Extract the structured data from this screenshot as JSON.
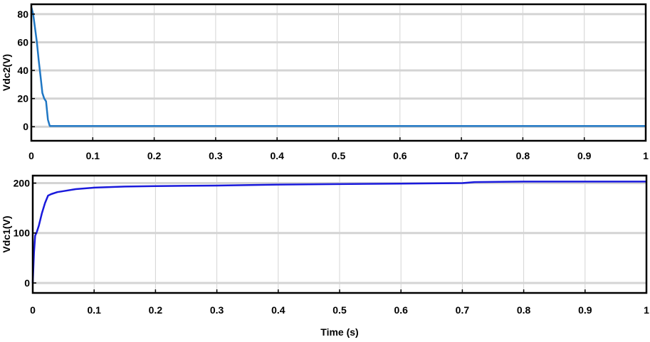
{
  "chart_data": [
    {
      "type": "line",
      "title": "",
      "xlabel": "",
      "ylabel": "Vdc2(V)",
      "xlim": [
        0,
        1
      ],
      "ylim": [
        -10,
        87
      ],
      "xticks": [
        0,
        0.1,
        0.2,
        0.3,
        0.4,
        0.5,
        0.6,
        0.7,
        0.8,
        0.9,
        1
      ],
      "xtick_labels": [
        "0",
        "0.1",
        "0.2",
        "0.3",
        "0.4",
        "0.5",
        "0.6",
        "0.7",
        "0.8",
        "0.9",
        "1"
      ],
      "yticks": [
        0,
        20,
        40,
        60,
        80
      ],
      "ytick_labels": [
        "0",
        "20",
        "40",
        "60",
        "80"
      ],
      "grid": true,
      "series": [
        {
          "color": "#1f77c4",
          "x": [
            0,
            0.003,
            0.006,
            0.009,
            0.012,
            0.015,
            0.018,
            0.021,
            0.024,
            0.027,
            0.03,
            0.1,
            0.3,
            0.5,
            0.7,
            0.9,
            1.0
          ],
          "y": [
            85,
            80,
            70,
            60,
            47,
            36,
            24,
            20,
            18,
            5,
            0.5,
            0.5,
            0.5,
            0.5,
            0.5,
            0.5,
            0.5
          ]
        }
      ]
    },
    {
      "type": "line",
      "title": "",
      "xlabel": "Time (s)",
      "ylabel": "Vdc1(V)",
      "xlim": [
        0,
        1
      ],
      "ylim": [
        -20,
        215
      ],
      "xticks": [
        0,
        0.1,
        0.2,
        0.3,
        0.4,
        0.5,
        0.6,
        0.7,
        0.8,
        0.9,
        1
      ],
      "xtick_labels": [
        "0",
        "0.1",
        "0.2",
        "0.3",
        "0.4",
        "0.5",
        "0.6",
        "0.7",
        "0.8",
        "0.9",
        "1"
      ],
      "yticks": [
        0,
        100,
        200
      ],
      "ytick_labels": [
        "0",
        "100",
        "200"
      ],
      "grid": true,
      "series": [
        {
          "color": "#1a1adc",
          "x": [
            0,
            0.002,
            0.004,
            0.006,
            0.01,
            0.015,
            0.02,
            0.025,
            0.03,
            0.04,
            0.05,
            0.07,
            0.1,
            0.15,
            0.2,
            0.3,
            0.4,
            0.5,
            0.6,
            0.7,
            0.72,
            0.8,
            0.9,
            1.0
          ],
          "y": [
            0,
            60,
            95,
            100,
            115,
            140,
            160,
            175,
            178,
            182,
            184,
            188,
            191,
            193,
            194,
            195,
            197,
            198,
            199,
            200,
            202,
            203,
            203,
            203
          ]
        }
      ]
    }
  ]
}
